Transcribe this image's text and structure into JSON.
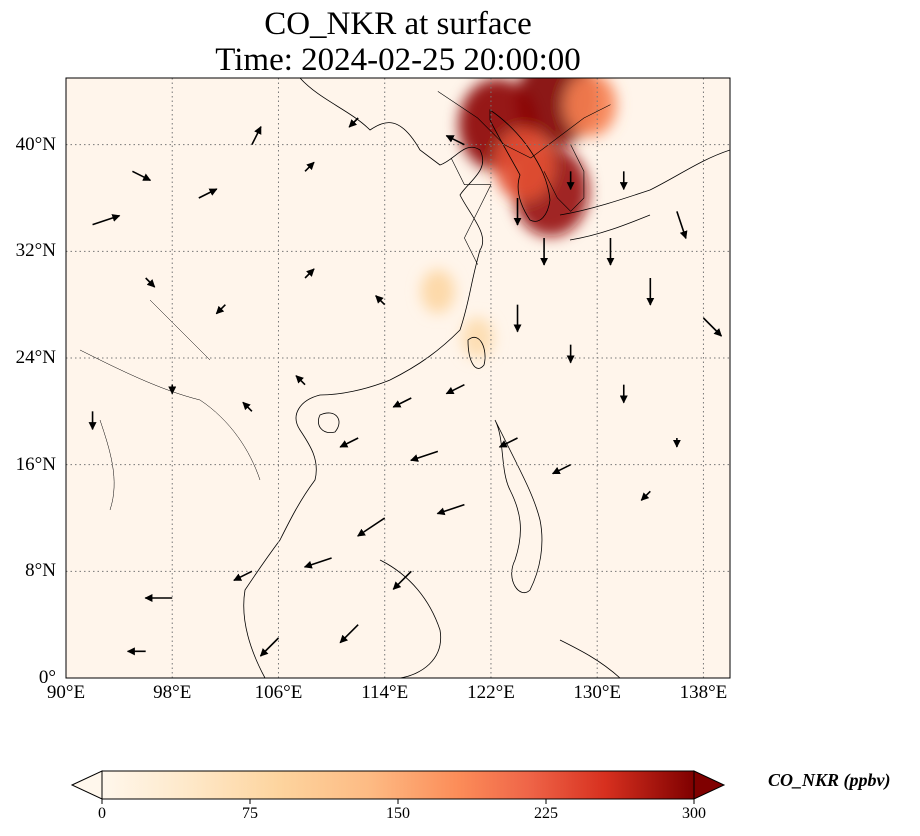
{
  "map": {
    "title_line1": "CO_NKR at surface",
    "title_line2": "Time: 2024-02-25 20:00:00",
    "extent": {
      "lon": [
        90,
        140
      ],
      "lat": [
        0,
        45
      ]
    },
    "lon_ticks": [
      {
        "value": 90,
        "label": "90°E"
      },
      {
        "value": 98,
        "label": "98°E"
      },
      {
        "value": 106,
        "label": "106°E"
      },
      {
        "value": 114,
        "label": "114°E"
      },
      {
        "value": 122,
        "label": "122°E"
      },
      {
        "value": 130,
        "label": "130°E"
      },
      {
        "value": 138,
        "label": "138°E"
      }
    ],
    "lat_ticks": [
      {
        "value": 0,
        "label": "0°"
      },
      {
        "value": 8,
        "label": "8°N"
      },
      {
        "value": 16,
        "label": "16°N"
      },
      {
        "value": 24,
        "label": "24°N"
      },
      {
        "value": 32,
        "label": "32°N"
      },
      {
        "value": 40,
        "label": "40°N"
      }
    ],
    "gridlines": true,
    "background_color": "#fff5eb",
    "plumes": [
      {
        "lon": 127.0,
        "lat": 43.5,
        "value": 300
      },
      {
        "lon": 122.5,
        "lat": 41.5,
        "value": 290
      },
      {
        "lon": 126.5,
        "lat": 36.5,
        "value": 280
      },
      {
        "lon": 124.5,
        "lat": 38.5,
        "value": 200
      },
      {
        "lon": 129.5,
        "lat": 43.0,
        "value": 160
      },
      {
        "lon": 118.0,
        "lat": 29.0,
        "value": 70
      },
      {
        "lon": 121.0,
        "lat": 25.5,
        "value": 60
      }
    ],
    "wind_vectors": [
      {
        "lon": 92,
        "lat": 34,
        "u": 3,
        "v": 1
      },
      {
        "lon": 95,
        "lat": 38,
        "u": 2,
        "v": -1
      },
      {
        "lon": 100,
        "lat": 36,
        "u": 2,
        "v": 1
      },
      {
        "lon": 104,
        "lat": 40,
        "u": 1,
        "v": 2
      },
      {
        "lon": 108,
        "lat": 38,
        "u": 1,
        "v": 1
      },
      {
        "lon": 112,
        "lat": 42,
        "u": -1,
        "v": -1
      },
      {
        "lon": 96,
        "lat": 30,
        "u": 1,
        "v": -1
      },
      {
        "lon": 102,
        "lat": 28,
        "u": -1,
        "v": -1
      },
      {
        "lon": 108,
        "lat": 30,
        "u": 1,
        "v": 1
      },
      {
        "lon": 114,
        "lat": 28,
        "u": -1,
        "v": 1
      },
      {
        "lon": 120,
        "lat": 40,
        "u": -2,
        "v": 1
      },
      {
        "lon": 124,
        "lat": 36,
        "u": 0,
        "v": -3
      },
      {
        "lon": 126,
        "lat": 33,
        "u": 0,
        "v": -3
      },
      {
        "lon": 128,
        "lat": 38,
        "u": 0,
        "v": -2
      },
      {
        "lon": 131,
        "lat": 33,
        "u": 0,
        "v": -3
      },
      {
        "lon": 134,
        "lat": 30,
        "u": 0,
        "v": -3
      },
      {
        "lon": 138,
        "lat": 27,
        "u": 2,
        "v": -2
      },
      {
        "lon": 136,
        "lat": 35,
        "u": 1,
        "v": -3
      },
      {
        "lon": 132,
        "lat": 38,
        "u": 0,
        "v": -2
      },
      {
        "lon": 124,
        "lat": 28,
        "u": 0,
        "v": -3
      },
      {
        "lon": 128,
        "lat": 25,
        "u": 0,
        "v": -2
      },
      {
        "lon": 132,
        "lat": 22,
        "u": 0,
        "v": -2
      },
      {
        "lon": 120,
        "lat": 22,
        "u": -2,
        "v": -1
      },
      {
        "lon": 116,
        "lat": 21,
        "u": -2,
        "v": -1
      },
      {
        "lon": 112,
        "lat": 18,
        "u": -2,
        "v": -1
      },
      {
        "lon": 118,
        "lat": 17,
        "u": -3,
        "v": -1
      },
      {
        "lon": 124,
        "lat": 18,
        "u": -2,
        "v": -1
      },
      {
        "lon": 128,
        "lat": 16,
        "u": -2,
        "v": -1
      },
      {
        "lon": 120,
        "lat": 13,
        "u": -3,
        "v": -1
      },
      {
        "lon": 114,
        "lat": 12,
        "u": -3,
        "v": -2
      },
      {
        "lon": 110,
        "lat": 9,
        "u": -3,
        "v": -1
      },
      {
        "lon": 116,
        "lat": 8,
        "u": -2,
        "v": -2
      },
      {
        "lon": 104,
        "lat": 8,
        "u": -2,
        "v": -1
      },
      {
        "lon": 98,
        "lat": 6,
        "u": -3,
        "v": 0
      },
      {
        "lon": 112,
        "lat": 4,
        "u": -2,
        "v": -2
      },
      {
        "lon": 106,
        "lat": 3,
        "u": -2,
        "v": -2
      },
      {
        "lon": 96,
        "lat": 2,
        "u": -2,
        "v": 0
      },
      {
        "lon": 92,
        "lat": 20,
        "u": 0,
        "v": -2
      },
      {
        "lon": 98,
        "lat": 22,
        "u": 0,
        "v": -1
      },
      {
        "lon": 104,
        "lat": 20,
        "u": -1,
        "v": 1
      },
      {
        "lon": 108,
        "lat": 22,
        "u": -1,
        "v": 1
      },
      {
        "lon": 134,
        "lat": 14,
        "u": -1,
        "v": -1
      },
      {
        "lon": 136,
        "lat": 18,
        "u": 0,
        "v": -1
      }
    ],
    "north_sector_lines": [
      [
        [
          118,
          44
        ],
        [
          121,
          42
        ],
        [
          123,
          40
        ],
        [
          125,
          39
        ],
        [
          129,
          42
        ],
        [
          131,
          43
        ]
      ],
      [
        [
          119,
          39
        ],
        [
          120,
          37
        ],
        [
          122,
          37
        ],
        [
          121,
          35
        ],
        [
          120,
          33
        ],
        [
          121,
          31
        ]
      ],
      [
        [
          126,
          38
        ],
        [
          127,
          36
        ],
        [
          128,
          35
        ],
        [
          129,
          36
        ],
        [
          129,
          38
        ],
        [
          128,
          40
        ]
      ]
    ]
  },
  "colorbar": {
    "label": "CO_NKR (ppbv)",
    "min": 0,
    "max": 300,
    "ticks": [
      "0",
      "75",
      "150",
      "225",
      "300"
    ],
    "colormap": "OrRd",
    "extend": "both"
  }
}
